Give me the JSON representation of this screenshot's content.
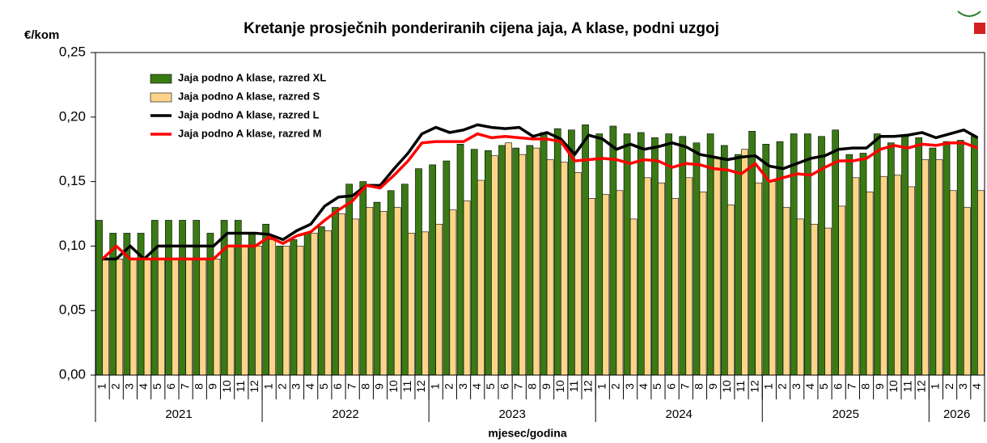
{
  "chart_data": {
    "type": "bar-line",
    "title": "Kretanje prosječnih ponderiranih cijena jaja, A klase, podni uzgoj",
    "y_label": "€/kom",
    "x_label": "mjesec/godina",
    "categories": [
      "1",
      "2",
      "3",
      "4",
      "5",
      "6",
      "7",
      "8",
      "9",
      "10",
      "11",
      "12",
      "1",
      "2",
      "3",
      "4",
      "5",
      "6",
      "7",
      "8",
      "9",
      "10",
      "11",
      "12",
      "1",
      "2",
      "3",
      "4",
      "5",
      "6",
      "7",
      "8",
      "9",
      "10",
      "11",
      "12",
      "1",
      "2",
      "3",
      "4",
      "5",
      "6",
      "7",
      "8",
      "9",
      "10",
      "11",
      "12",
      "1",
      "2",
      "3",
      "4",
      "5",
      "6",
      "7",
      "8",
      "9",
      "10",
      "11",
      "12",
      "1",
      "2",
      "3",
      "4"
    ],
    "years": [
      "2021",
      "2022",
      "2023",
      "2024",
      "2025",
      "2026"
    ],
    "ylim": [
      0,
      0.25
    ],
    "yticks": [
      {
        "value": 0,
        "label": "0,00"
      },
      {
        "value": 0.05,
        "label": "0,05"
      },
      {
        "value": 0.1,
        "label": "0,10"
      },
      {
        "value": 0.15,
        "label": "0,15"
      },
      {
        "value": 0.2,
        "label": "0,20"
      },
      {
        "value": 0.25,
        "label": "0,25"
      }
    ],
    "grid": false,
    "legend": "upper left",
    "series": [
      {
        "name": "Jaja podno A klase, razred XL",
        "kind": "bar",
        "color": "#3a7a14",
        "values": [
          0.12,
          0.11,
          0.11,
          0.11,
          0.12,
          0.12,
          0.12,
          0.12,
          0.11,
          0.12,
          0.12,
          0.11,
          0.117,
          0.1,
          0.105,
          0.11,
          0.115,
          0.13,
          0.148,
          0.15,
          0.134,
          0.143,
          0.148,
          0.16,
          0.163,
          0.166,
          0.179,
          0.175,
          0.174,
          0.178,
          0.176,
          0.178,
          0.188,
          0.191,
          0.19,
          0.194,
          0.187,
          0.193,
          0.187,
          0.188,
          0.184,
          0.187,
          0.185,
          0.18,
          0.187,
          0.178,
          0.171,
          0.189,
          0.179,
          0.181,
          0.187,
          0.187,
          0.185,
          0.19,
          0.171,
          0.172,
          0.187,
          0.18,
          0.185,
          0.184,
          0.176,
          0.181,
          0.182,
          0.185
        ]
      },
      {
        "name": "Jaja podno A klase, razred S",
        "kind": "bar",
        "color": "#fcd58a",
        "values": [
          0.09,
          0.09,
          0.09,
          0.09,
          0.09,
          0.09,
          0.09,
          0.09,
          0.09,
          0.1,
          0.1,
          0.1,
          0.105,
          0.1,
          0.1,
          0.11,
          0.112,
          0.125,
          0.121,
          0.13,
          0.127,
          0.13,
          0.11,
          0.111,
          0.117,
          0.128,
          0.135,
          0.151,
          0.17,
          0.18,
          0.171,
          0.176,
          0.167,
          0.165,
          0.157,
          0.137,
          0.14,
          0.143,
          0.121,
          0.153,
          0.149,
          0.137,
          0.153,
          0.142,
          0.168,
          0.132,
          0.175,
          0.149,
          0.15,
          0.13,
          0.121,
          0.117,
          0.114,
          0.131,
          0.153,
          0.142,
          0.154,
          0.155,
          0.146,
          0.167,
          0.167,
          0.143,
          0.13,
          0.143
        ]
      },
      {
        "name": "Jaja podno A klase, razred L",
        "kind": "line",
        "color": "#000000",
        "values": [
          0.09,
          0.09,
          0.1,
          0.09,
          0.1,
          0.1,
          0.1,
          0.1,
          0.1,
          0.11,
          0.11,
          0.11,
          0.109,
          0.105,
          0.112,
          0.117,
          0.131,
          0.138,
          0.139,
          0.147,
          0.147,
          0.16,
          0.172,
          0.187,
          0.192,
          0.188,
          0.19,
          0.194,
          0.192,
          0.191,
          0.192,
          0.185,
          0.188,
          0.183,
          0.171,
          0.186,
          0.183,
          0.175,
          0.179,
          0.175,
          0.177,
          0.18,
          0.177,
          0.171,
          0.169,
          0.167,
          0.169,
          0.17,
          0.162,
          0.16,
          0.164,
          0.168,
          0.17,
          0.175,
          0.176,
          0.176,
          0.185,
          0.185,
          0.186,
          0.188,
          0.184,
          0.187,
          0.19,
          0.184
        ]
      },
      {
        "name": "Jaja podno A klase, razred M",
        "kind": "line",
        "color": "#ff0000",
        "values": [
          0.09,
          0.1,
          0.09,
          0.09,
          0.09,
          0.09,
          0.09,
          0.09,
          0.09,
          0.1,
          0.1,
          0.1,
          0.107,
          0.102,
          0.108,
          0.111,
          0.12,
          0.128,
          0.135,
          0.147,
          0.145,
          0.155,
          0.166,
          0.18,
          0.181,
          0.181,
          0.181,
          0.187,
          0.184,
          0.185,
          0.184,
          0.183,
          0.183,
          0.181,
          0.166,
          0.167,
          0.168,
          0.167,
          0.164,
          0.167,
          0.166,
          0.161,
          0.164,
          0.163,
          0.16,
          0.159,
          0.156,
          0.164,
          0.15,
          0.153,
          0.156,
          0.155,
          0.161,
          0.166,
          0.166,
          0.168,
          0.175,
          0.178,
          0.176,
          0.179,
          0.178,
          0.18,
          0.18,
          0.176
        ]
      }
    ]
  }
}
